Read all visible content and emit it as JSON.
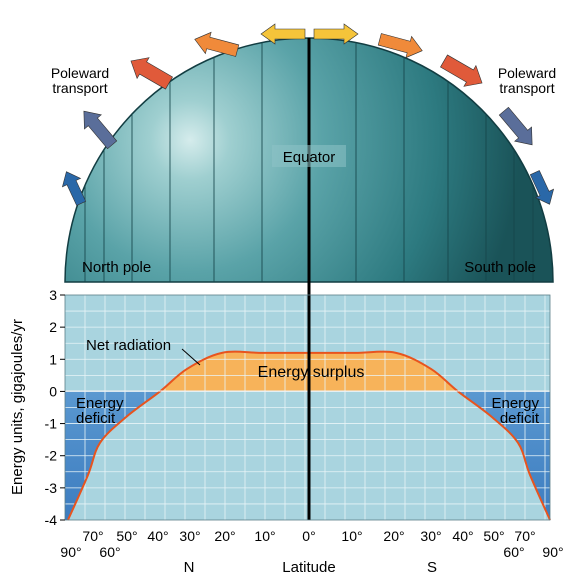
{
  "globe": {
    "equator_label": "Equator",
    "north_pole_label": "North pole",
    "south_pole_label": "South pole",
    "transport_left_line1": "Poleward",
    "transport_left_line2": "transport",
    "transport_right_line1": "Poleward",
    "transport_right_line2": "transport"
  },
  "chart": {
    "ylabel": "Energy units, gigajoules/yr",
    "xlabel": "Latitude",
    "north_label": "N",
    "south_label": "S",
    "net_radiation_label": "Net radiation",
    "surplus_label": "Energy surplus",
    "deficit_left_line1": "Energy",
    "deficit_left_line2": "deficit",
    "deficit_right_line1": "Energy",
    "deficit_right_line2": "deficit",
    "y_ticks": [
      "3",
      "2",
      "1",
      "0",
      "-1",
      "-2",
      "-3",
      "-4"
    ],
    "x_ticks_upper": [
      "70°",
      "50°",
      "40°",
      "30°",
      "20°",
      "10°",
      "0°",
      "10°",
      "20°",
      "30°",
      "40°",
      "50°",
      "70°"
    ],
    "x_ticks_lower": [
      "90°",
      "60°",
      "60°",
      "90°"
    ]
  },
  "colors": {
    "globe_dark": "#1f5f66",
    "globe_light": "#cfe8e8",
    "plot_bg": "#a9d4df",
    "deficit_fill": "#4a8cc8",
    "surplus_fill": "#f7b35a",
    "curve": "#e8541e",
    "arrow_red": "#e05a3a",
    "arrow_orange": "#f08a3a",
    "arrow_yellow": "#f5c43a",
    "arrow_slate": "#5a6e9a",
    "arrow_blue": "#2a68a8"
  },
  "chart_data": {
    "type": "area",
    "title": "",
    "xlabel": "Latitude",
    "ylabel": "Energy units, gigajoules/yr",
    "ylim": [
      -4,
      3
    ],
    "grid": true,
    "series": [
      {
        "name": "Net radiation",
        "x_latitude_labels": [
          "90° N",
          "70° N",
          "60° N",
          "50° N",
          "40° N",
          "30° N",
          "20° N",
          "10° N",
          "0°",
          "10° S",
          "20° S",
          "30° S",
          "40° S",
          "50° S",
          "60° S",
          "70° S",
          "90° S"
        ],
        "values": [
          -4,
          -2.6,
          -1.6,
          -0.8,
          0,
          0.7,
          1.2,
          1.2,
          1.2,
          1.2,
          1.2,
          0.7,
          0,
          -0.8,
          -1.6,
          -2.6,
          -4
        ]
      }
    ]
  }
}
